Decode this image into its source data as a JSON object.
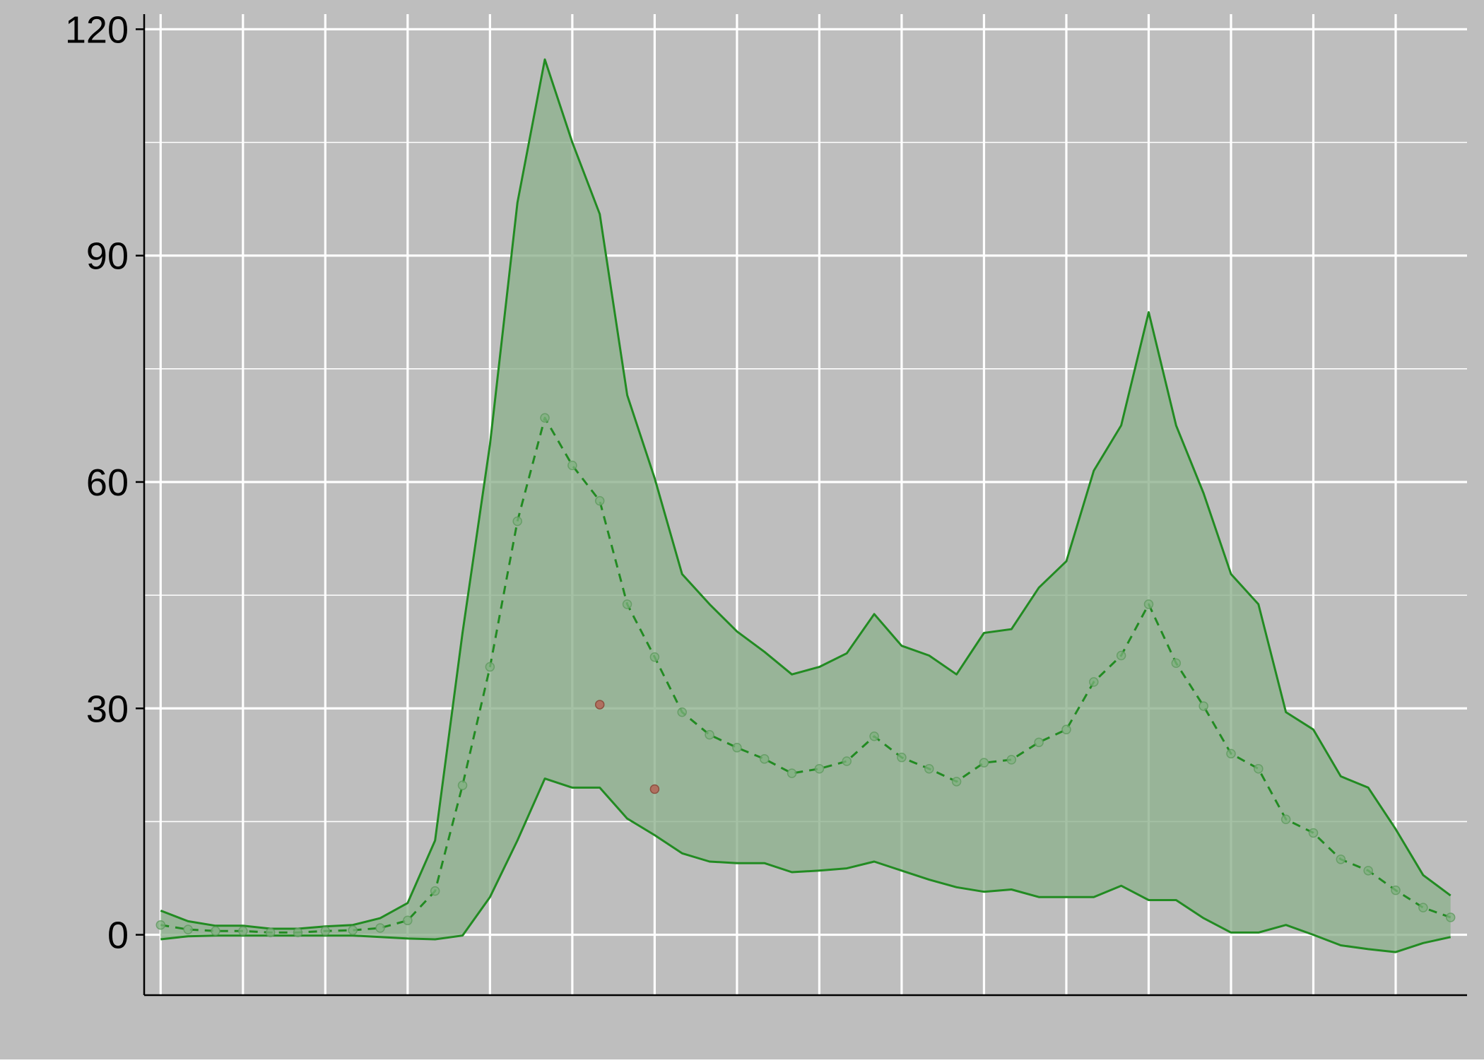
{
  "chart_data": {
    "type": "line",
    "title": "",
    "xlabel": "",
    "ylabel": "",
    "x": [
      1,
      2,
      3,
      4,
      5,
      6,
      7,
      8,
      9,
      10,
      11,
      12,
      13,
      14,
      15,
      16,
      17,
      18,
      19,
      20,
      21,
      22,
      23,
      24,
      25,
      26,
      27,
      28,
      29,
      30,
      31,
      32,
      33,
      34,
      35,
      36,
      37,
      38,
      39,
      40,
      41,
      42,
      43,
      44,
      45,
      46,
      47,
      48
    ],
    "xlim": [
      0.4,
      48.6
    ],
    "ylim": [
      -8,
      122
    ],
    "y_ticks": [
      0,
      30,
      60,
      90,
      120
    ],
    "y_tick_labels": [
      "0",
      "30",
      "60",
      "90",
      "120"
    ],
    "x_grid": [
      1,
      4,
      7,
      10,
      13,
      16,
      19,
      22,
      25,
      28,
      31,
      34,
      37,
      40,
      43,
      46
    ],
    "y_minor_grid": [
      15,
      45,
      75,
      105
    ],
    "grid": true,
    "legend": "none",
    "colors": {
      "outer_background": "#bebebe",
      "panel_background": "#bebebe",
      "grid": "#ffffff",
      "band_fill": "#8fb28f",
      "series_line": "#228b22",
      "outlier": "#b07060"
    },
    "series": [
      {
        "role": "upper-bound",
        "style": "solid",
        "values": [
          3.2,
          1.8,
          1.2,
          1.2,
          0.8,
          0.8,
          1.1,
          1.3,
          2.2,
          4.2,
          12.5,
          40,
          65,
          97,
          116,
          105,
          95.5,
          71.5,
          60.5,
          47.8,
          43.8,
          40.2,
          37.5,
          34.5,
          35.5,
          37.3,
          42.5,
          38.3,
          37,
          34.5,
          40,
          40.5,
          46,
          49.5,
          61.5,
          67.5,
          82.5,
          67.5,
          58.5,
          47.8,
          43.8,
          29.5,
          27.2,
          21,
          19.5,
          14,
          7.9,
          5.2
        ]
      },
      {
        "role": "lower-bound",
        "style": "solid",
        "values": [
          -0.6,
          -0.2,
          -0.1,
          -0.1,
          -0.1,
          -0.1,
          -0.1,
          -0.1,
          -0.3,
          -0.5,
          -0.6,
          -0.1,
          5,
          12.5,
          20.7,
          19.5,
          19.5,
          15.4,
          13.2,
          10.8,
          9.7,
          9.5,
          9.5,
          8.3,
          8.5,
          8.8,
          9.7,
          8.5,
          7.3,
          6.3,
          5.7,
          6,
          5,
          5,
          5,
          6.5,
          4.6,
          4.6,
          2.2,
          0.3,
          0.3,
          1.3,
          0,
          -1.4,
          -1.9,
          -2.3,
          -1.1,
          -0.3
        ]
      },
      {
        "role": "median",
        "style": "dashed",
        "values": [
          1.3,
          0.7,
          0.5,
          0.5,
          0.3,
          0.3,
          0.5,
          0.6,
          0.9,
          1.9,
          5.8,
          19.8,
          35.5,
          54.8,
          68.5,
          62.2,
          57.5,
          43.8,
          36.8,
          29.5,
          26.5,
          24.8,
          23.3,
          21.4,
          22,
          23,
          26.3,
          23.5,
          22,
          20.3,
          22.8,
          23.2,
          25.5,
          27.2,
          33.5,
          37,
          43.8,
          36,
          30.3,
          24,
          22,
          15.3,
          13.5,
          10,
          8.5,
          5.9,
          3.6,
          2.3
        ]
      }
    ],
    "outliers": [
      {
        "x": 17,
        "y": 30.5
      },
      {
        "x": 19,
        "y": 19.3
      }
    ]
  }
}
